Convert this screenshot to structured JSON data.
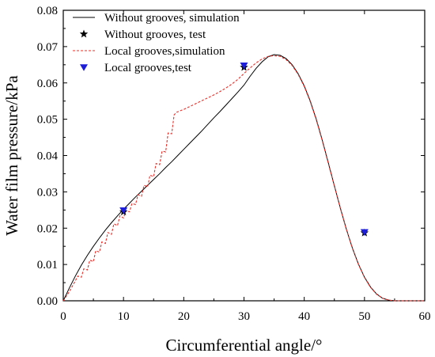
{
  "chart_data": {
    "type": "line",
    "xlabel": "Circumferential angle/°",
    "ylabel": "Water film pressure/kPa",
    "xlim": [
      0,
      60
    ],
    "ylim": [
      0,
      0.08
    ],
    "x_ticks": [
      "0",
      "10",
      "20",
      "30",
      "40",
      "50",
      "60"
    ],
    "y_ticks": [
      "0.00",
      "0.01",
      "0.02",
      "0.03",
      "0.04",
      "0.05",
      "0.06",
      "0.07",
      "0.08"
    ],
    "grid": false,
    "legend_position": "top-left",
    "series": [
      {
        "name": "Without grooves, simulation",
        "style": "solid",
        "color": "#000000",
        "x": [
          0,
          1,
          2,
          3,
          4,
          5,
          6,
          7,
          8,
          9,
          10,
          11,
          12,
          13,
          14,
          15,
          16,
          17,
          18,
          19,
          20,
          21,
          22,
          23,
          24,
          25,
          26,
          27,
          28,
          29,
          30,
          31,
          32,
          33,
          34,
          35,
          36,
          37,
          38,
          39,
          40,
          41,
          42,
          43,
          44,
          45,
          46,
          47,
          48,
          49,
          50,
          51,
          52,
          53,
          54,
          55,
          56,
          58,
          60
        ],
        "y": [
          0.0,
          0.0035,
          0.0068,
          0.0098,
          0.0125,
          0.015,
          0.0173,
          0.0195,
          0.0215,
          0.0234,
          0.0252,
          0.0269,
          0.0286,
          0.0302,
          0.0318,
          0.0334,
          0.035,
          0.0367,
          0.0383,
          0.04,
          0.0417,
          0.0434,
          0.0451,
          0.0468,
          0.0486,
          0.0504,
          0.0521,
          0.0539,
          0.0557,
          0.0575,
          0.0594,
          0.0618,
          0.064,
          0.0658,
          0.0672,
          0.0678,
          0.0676,
          0.0667,
          0.065,
          0.0625,
          0.0592,
          0.055,
          0.05,
          0.0442,
          0.038,
          0.0317,
          0.0255,
          0.0197,
          0.0145,
          0.0101,
          0.0065,
          0.0038,
          0.0019,
          0.0007,
          0.0002,
          0.0,
          0.0,
          0.0,
          0.0
        ]
      },
      {
        "name": "Without grooves, test",
        "style": "marker-star",
        "color": "#000000",
        "x": [
          10,
          30,
          50
        ],
        "y": [
          0.0245,
          0.0643,
          0.0187
        ]
      },
      {
        "name": "Local grooves,simulation",
        "style": "dashed",
        "color": "#e8302a",
        "x": [
          0,
          1,
          2,
          2.4,
          3,
          3.4,
          4,
          4.4,
          5,
          5.4,
          6,
          6.4,
          7,
          7.4,
          8,
          8.4,
          9,
          9.4,
          10,
          10.4,
          11,
          11.4,
          12,
          12.4,
          13,
          13.4,
          14,
          14.4,
          15,
          15.4,
          16,
          16.4,
          17,
          17.4,
          18,
          18.4,
          18.8,
          19.5,
          20,
          21,
          22,
          23,
          24,
          25,
          26,
          27,
          28,
          29,
          30,
          31,
          32,
          33,
          34,
          35,
          36,
          37,
          38,
          39,
          40,
          41,
          42,
          43,
          44,
          45,
          46,
          47,
          48,
          49,
          50,
          51,
          52,
          53,
          54,
          55,
          56,
          58,
          60
        ],
        "y": [
          0.0,
          0.0025,
          0.0055,
          0.0068,
          0.0065,
          0.0088,
          0.0085,
          0.0112,
          0.0108,
          0.0138,
          0.0134,
          0.0162,
          0.0158,
          0.0188,
          0.0183,
          0.0212,
          0.0207,
          0.0234,
          0.0228,
          0.0248,
          0.0245,
          0.0268,
          0.0265,
          0.0292,
          0.0288,
          0.0318,
          0.0314,
          0.0346,
          0.0342,
          0.0378,
          0.0375,
          0.0412,
          0.041,
          0.0462,
          0.046,
          0.0512,
          0.0519,
          0.0524,
          0.0527,
          0.0535,
          0.0543,
          0.0551,
          0.0559,
          0.0567,
          0.0576,
          0.0586,
          0.0597,
          0.061,
          0.0626,
          0.0641,
          0.0655,
          0.0666,
          0.0673,
          0.0675,
          0.0673,
          0.0664,
          0.0648,
          0.0623,
          0.059,
          0.0548,
          0.0498,
          0.044,
          0.0378,
          0.0316,
          0.0254,
          0.0196,
          0.0144,
          0.01,
          0.0064,
          0.0037,
          0.0018,
          0.0007,
          0.0002,
          0.0,
          0.0,
          0.0,
          0.0
        ]
      },
      {
        "name": "Local grooves,test",
        "style": "marker-triangle-down",
        "color": "#1e1ed8",
        "x": [
          10,
          30,
          50
        ],
        "y": [
          0.0249,
          0.0648,
          0.0189
        ]
      }
    ]
  }
}
